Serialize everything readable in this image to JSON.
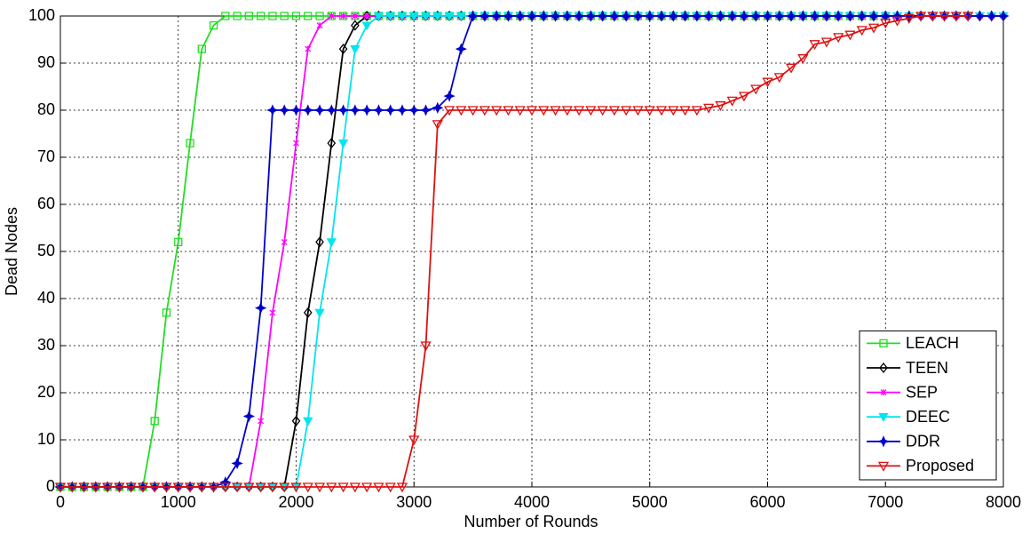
{
  "chart_data": {
    "type": "line",
    "xlabel": "Number of Rounds",
    "ylabel": "Dead Nodes",
    "x": [
      0,
      100,
      200,
      300,
      400,
      500,
      600,
      700,
      800,
      900,
      1000,
      1100,
      1200,
      1300,
      1400,
      1500,
      1600,
      1700,
      1800,
      1900,
      2000,
      2100,
      2200,
      2300,
      2400,
      2500,
      2600,
      2700,
      2800,
      2900,
      3000,
      3100,
      3200,
      3300,
      3400,
      3500,
      3600,
      3700,
      3800,
      3900,
      4000,
      4100,
      4200,
      4300,
      4400,
      4500,
      4600,
      4700,
      4800,
      4900,
      5000,
      5100,
      5200,
      5300,
      5400,
      5500,
      5600,
      5700,
      5800,
      5900,
      6000,
      6100,
      6200,
      6300,
      6400,
      6500,
      6600,
      6700,
      6800,
      6900,
      7000,
      7100,
      7200,
      7300,
      7400,
      7500,
      7600,
      7700,
      7800,
      7900,
      8000
    ],
    "xlim": [
      0,
      8000
    ],
    "xticks": [
      0,
      1000,
      2000,
      3000,
      4000,
      5000,
      6000,
      7000,
      8000
    ],
    "ylim": [
      0,
      100
    ],
    "yticks": [
      0,
      10,
      20,
      30,
      40,
      50,
      60,
      70,
      80,
      90,
      100
    ],
    "grid": true,
    "legend": "lower right",
    "series": [
      {
        "name": "LEACH",
        "color": "#22dd22",
        "marker": "square",
        "values": [
          0,
          0,
          0,
          0,
          0,
          0,
          0,
          0,
          14,
          37,
          52,
          73,
          93,
          98,
          100,
          100,
          100,
          100,
          100,
          100,
          100,
          100,
          100,
          100,
          100,
          100,
          100,
          100,
          100,
          100,
          100,
          100,
          100,
          100,
          100,
          100,
          100,
          100,
          100,
          100,
          100,
          100,
          100,
          100,
          100,
          100,
          100,
          100,
          100,
          100,
          100,
          100,
          100,
          100,
          100,
          100,
          100,
          100,
          100,
          100,
          100,
          100,
          100,
          100,
          100,
          100,
          100,
          100,
          100,
          100,
          100,
          null,
          null,
          null,
          null,
          null,
          null,
          null,
          null,
          null,
          null
        ]
      },
      {
        "name": "TEEN",
        "color": "#000000",
        "marker": "diamond",
        "values": [
          0,
          0,
          0,
          0,
          0,
          0,
          0,
          0,
          0,
          0,
          0,
          0,
          0,
          0,
          0,
          0,
          0,
          0,
          0,
          0,
          14,
          37,
          52,
          73,
          93,
          98,
          100,
          100,
          100,
          100,
          100,
          100,
          100,
          100,
          100,
          100,
          100,
          100,
          100,
          100,
          100,
          100,
          100,
          100,
          100,
          100,
          100,
          100,
          100,
          100,
          100,
          100,
          100,
          100,
          100,
          100,
          100,
          100,
          100,
          100,
          100,
          100,
          100,
          100,
          100,
          100,
          100,
          100,
          100,
          100,
          100,
          100,
          100,
          100,
          100,
          100,
          100,
          100,
          100,
          100,
          100
        ]
      },
      {
        "name": "SEP",
        "color": "#ff00ff",
        "marker": "x",
        "values": [
          0,
          0,
          0,
          0,
          0,
          0,
          0,
          0,
          0,
          0,
          0,
          0,
          0,
          0,
          0,
          0,
          0,
          14,
          37,
          52,
          73,
          93,
          98,
          100,
          100,
          100,
          100,
          100,
          100,
          100,
          100,
          100,
          100,
          100,
          100,
          100,
          100,
          100,
          100,
          100,
          100,
          100,
          100,
          100,
          100,
          100,
          100,
          100,
          100,
          100,
          100,
          100,
          100,
          100,
          100,
          100,
          100,
          100,
          100,
          100,
          100,
          100,
          100,
          100,
          100,
          100,
          100,
          100,
          100,
          100,
          100,
          100,
          100,
          100,
          100,
          100,
          100,
          100,
          100,
          100,
          100
        ]
      },
      {
        "name": "DEEC",
        "color": "#00e5ee",
        "marker": "tri-filled",
        "values": [
          0,
          0,
          0,
          0,
          0,
          0,
          0,
          0,
          0,
          0,
          0,
          0,
          0,
          0,
          0,
          0,
          0,
          0,
          0,
          0,
          0,
          14,
          37,
          52,
          73,
          93,
          98,
          100,
          100,
          100,
          100,
          100,
          100,
          100,
          100,
          100,
          100,
          100,
          100,
          100,
          100,
          100,
          100,
          100,
          100,
          100,
          100,
          100,
          100,
          100,
          100,
          100,
          100,
          100,
          100,
          100,
          100,
          100,
          100,
          100,
          100,
          100,
          100,
          100,
          100,
          100,
          100,
          100,
          100,
          100,
          100,
          100,
          100,
          100,
          100,
          100,
          100,
          100,
          100,
          100,
          100
        ]
      },
      {
        "name": "DDR",
        "color": "#0000cc",
        "marker": "star",
        "values": [
          0,
          0,
          0,
          0,
          0,
          0,
          0,
          0,
          0,
          0,
          0,
          0,
          0,
          0,
          1,
          5,
          15,
          38,
          80,
          80,
          80,
          80,
          80,
          80,
          80,
          80,
          80,
          80,
          80,
          80,
          80,
          80,
          80.5,
          83,
          93,
          100,
          100,
          100,
          100,
          100,
          100,
          100,
          100,
          100,
          100,
          100,
          100,
          100,
          100,
          100,
          100,
          100,
          100,
          100,
          100,
          100,
          100,
          100,
          100,
          100,
          100,
          100,
          100,
          100,
          100,
          100,
          100,
          100,
          100,
          100,
          100,
          100,
          100,
          100,
          100,
          100,
          100,
          100,
          100,
          100,
          100
        ]
      },
      {
        "name": "Proposed",
        "color": "#dd1111",
        "marker": "tri-open",
        "values": [
          0,
          0,
          0,
          0,
          0,
          0,
          0,
          0,
          0,
          0,
          0,
          0,
          0,
          0,
          0,
          0,
          0,
          0,
          0,
          0,
          0,
          0,
          0,
          0,
          0,
          0,
          0,
          0,
          0,
          0,
          10,
          30,
          77,
          80,
          80,
          80,
          80,
          80,
          80,
          80,
          80,
          80,
          80,
          80,
          80,
          80,
          80,
          80,
          80,
          80,
          80,
          80,
          80,
          80,
          80,
          80.5,
          81,
          82,
          83,
          84.5,
          86,
          87,
          89,
          91,
          94,
          94.5,
          95.5,
          96,
          97,
          97.5,
          98.5,
          99,
          99.5,
          100,
          100,
          100,
          100,
          100,
          null,
          null,
          null
        ]
      }
    ]
  }
}
